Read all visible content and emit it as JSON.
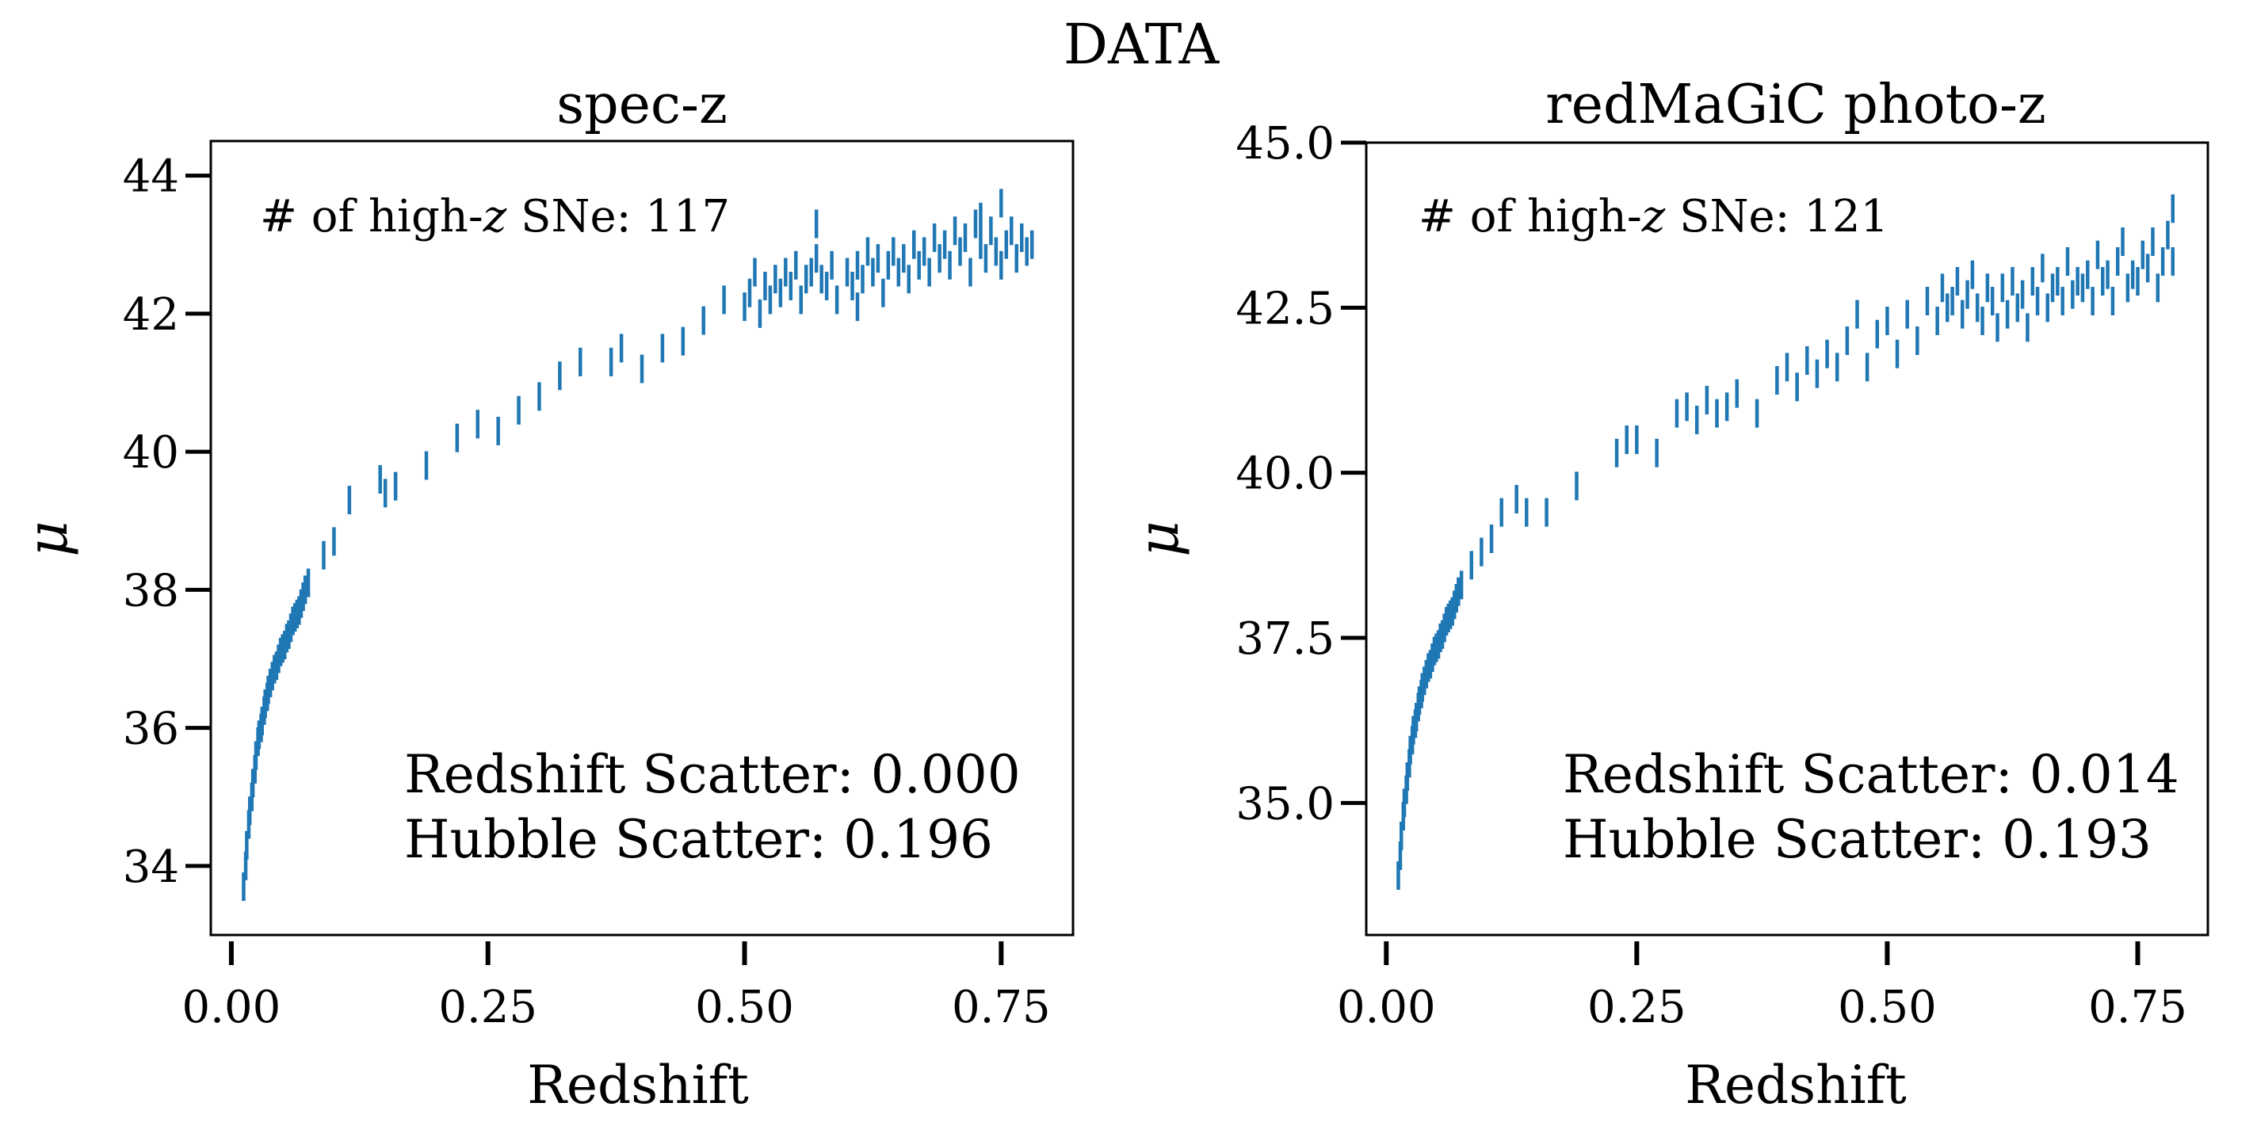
{
  "suptitle": "DATA",
  "chart_data": [
    {
      "type": "scatter",
      "title": "spec-z",
      "xlabel": "Redshift",
      "ylabel": "μ",
      "xlim": [
        -0.02,
        0.82
      ],
      "ylim": [
        33.0,
        44.5
      ],
      "xticks": [
        0.0,
        0.25,
        0.5,
        0.75
      ],
      "xtick_labels": [
        "0.00",
        "0.25",
        "0.50",
        "0.75"
      ],
      "yticks": [
        34,
        36,
        38,
        40,
        42,
        44
      ],
      "ytick_labels": [
        "34",
        "36",
        "38",
        "40",
        "42",
        "44"
      ],
      "count_prefix": "# of high-",
      "count_italic": "z",
      "count_suffix": " SNe: 117",
      "annot_line1": "Redshift Scatter: 0.000",
      "annot_line2": "Hubble Scatter: 0.196",
      "series": [
        {
          "color": "#1f77b4",
          "x": [
            0.012,
            0.014,
            0.015,
            0.017,
            0.018,
            0.02,
            0.021,
            0.023,
            0.024,
            0.026,
            0.027,
            0.029,
            0.03,
            0.032,
            0.033,
            0.035,
            0.036,
            0.038,
            0.04,
            0.042,
            0.044,
            0.046,
            0.048,
            0.05,
            0.052,
            0.054,
            0.056,
            0.058,
            0.06,
            0.062,
            0.064,
            0.066,
            0.068,
            0.07,
            0.072,
            0.075,
            0.09,
            0.1,
            0.115,
            0.145,
            0.15,
            0.16,
            0.19,
            0.22,
            0.24,
            0.26,
            0.28,
            0.3,
            0.32,
            0.34,
            0.37,
            0.38,
            0.4,
            0.42,
            0.44,
            0.46,
            0.48,
            0.5,
            0.505,
            0.51,
            0.515,
            0.52,
            0.525,
            0.53,
            0.535,
            0.54,
            0.545,
            0.55,
            0.555,
            0.56,
            0.565,
            0.57,
            0.575,
            0.58,
            0.585,
            0.59,
            0.6,
            0.605,
            0.61,
            0.615,
            0.62,
            0.625,
            0.63,
            0.635,
            0.64,
            0.645,
            0.65,
            0.655,
            0.66,
            0.665,
            0.67,
            0.675,
            0.68,
            0.685,
            0.69,
            0.695,
            0.7,
            0.705,
            0.71,
            0.715,
            0.72,
            0.725,
            0.73,
            0.735,
            0.74,
            0.745,
            0.75,
            0.755,
            0.76,
            0.765,
            0.77,
            0.775,
            0.78,
            0.57,
            0.61,
            0.73,
            0.75
          ],
          "y": [
            33.7,
            34.0,
            34.3,
            34.6,
            34.8,
            35.0,
            35.2,
            35.4,
            35.6,
            35.8,
            35.9,
            36.0,
            36.1,
            36.25,
            36.35,
            36.45,
            36.55,
            36.65,
            36.75,
            36.85,
            36.9,
            37.0,
            37.1,
            37.15,
            37.2,
            37.3,
            37.35,
            37.45,
            37.55,
            37.6,
            37.65,
            37.7,
            37.8,
            37.9,
            38.0,
            38.1,
            38.5,
            38.7,
            39.3,
            39.6,
            39.4,
            39.5,
            39.8,
            40.2,
            40.4,
            40.3,
            40.6,
            40.8,
            41.1,
            41.3,
            41.3,
            41.5,
            41.2,
            41.5,
            41.6,
            41.9,
            42.2,
            42.1,
            42.3,
            42.6,
            42.0,
            42.4,
            42.2,
            42.5,
            42.3,
            42.6,
            42.4,
            42.7,
            42.2,
            42.5,
            42.6,
            42.8,
            42.5,
            42.4,
            42.7,
            42.2,
            42.6,
            42.4,
            42.7,
            42.5,
            42.9,
            42.6,
            42.8,
            42.3,
            42.7,
            42.9,
            42.6,
            42.8,
            42.5,
            43.0,
            42.7,
            42.9,
            42.6,
            43.1,
            42.8,
            43.0,
            42.7,
            43.2,
            42.9,
            43.1,
            42.6,
            43.3,
            43.0,
            42.8,
            43.2,
            42.9,
            43.6,
            43.0,
            43.2,
            42.8,
            43.1,
            42.9,
            43.0,
            43.3,
            42.1,
            43.4,
            42.7
          ]
        }
      ]
    },
    {
      "type": "scatter",
      "title": "redMaGiC photo-z",
      "xlabel": "Redshift",
      "ylabel": "μ",
      "xlim": [
        -0.02,
        0.82
      ],
      "ylim": [
        33.0,
        45.0
      ],
      "xticks": [
        0.0,
        0.25,
        0.5,
        0.75
      ],
      "xtick_labels": [
        "0.00",
        "0.25",
        "0.50",
        "0.75"
      ],
      "yticks": [
        35.0,
        37.5,
        40.0,
        42.5,
        45.0
      ],
      "ytick_labels": [
        "35.0",
        "37.5",
        "40.0",
        "42.5",
        "45.0"
      ],
      "count_prefix": "# of high-",
      "count_italic": "z",
      "count_suffix": " SNe: 121",
      "annot_line1": "Redshift Scatter: 0.014",
      "annot_line2": "Hubble Scatter: 0.193",
      "series": [
        {
          "color": "#1f77b4",
          "x": [
            0.012,
            0.014,
            0.015,
            0.017,
            0.018,
            0.02,
            0.021,
            0.023,
            0.024,
            0.026,
            0.027,
            0.029,
            0.03,
            0.032,
            0.033,
            0.035,
            0.036,
            0.038,
            0.04,
            0.042,
            0.044,
            0.046,
            0.048,
            0.05,
            0.052,
            0.054,
            0.056,
            0.058,
            0.06,
            0.062,
            0.064,
            0.066,
            0.068,
            0.07,
            0.072,
            0.075,
            0.085,
            0.095,
            0.105,
            0.115,
            0.13,
            0.14,
            0.16,
            0.19,
            0.23,
            0.24,
            0.25,
            0.27,
            0.29,
            0.3,
            0.31,
            0.32,
            0.33,
            0.34,
            0.35,
            0.37,
            0.39,
            0.4,
            0.41,
            0.42,
            0.43,
            0.44,
            0.45,
            0.46,
            0.47,
            0.48,
            0.49,
            0.5,
            0.51,
            0.52,
            0.53,
            0.54,
            0.55,
            0.555,
            0.56,
            0.565,
            0.57,
            0.575,
            0.58,
            0.585,
            0.59,
            0.595,
            0.6,
            0.605,
            0.61,
            0.615,
            0.62,
            0.625,
            0.63,
            0.635,
            0.64,
            0.645,
            0.65,
            0.655,
            0.66,
            0.665,
            0.67,
            0.675,
            0.68,
            0.685,
            0.69,
            0.695,
            0.7,
            0.705,
            0.71,
            0.715,
            0.72,
            0.725,
            0.73,
            0.735,
            0.74,
            0.745,
            0.75,
            0.755,
            0.76,
            0.765,
            0.77,
            0.775,
            0.78,
            0.785,
            0.785
          ],
          "y": [
            33.9,
            34.2,
            34.5,
            34.8,
            35.0,
            35.2,
            35.4,
            35.6,
            35.8,
            35.95,
            36.1,
            36.2,
            36.3,
            36.45,
            36.55,
            36.65,
            36.75,
            36.85,
            36.95,
            37.05,
            37.1,
            37.2,
            37.3,
            37.35,
            37.4,
            37.5,
            37.55,
            37.65,
            37.75,
            37.8,
            37.85,
            37.9,
            38.0,
            38.1,
            38.2,
            38.3,
            38.6,
            38.8,
            39.0,
            39.4,
            39.6,
            39.4,
            39.4,
            39.8,
            40.3,
            40.5,
            40.5,
            40.3,
            40.9,
            41.0,
            40.8,
            41.1,
            40.9,
            41.0,
            41.2,
            40.9,
            41.4,
            41.6,
            41.3,
            41.7,
            41.5,
            41.8,
            41.6,
            42.0,
            42.4,
            41.6,
            42.1,
            42.3,
            41.8,
            42.4,
            42.0,
            42.6,
            42.3,
            42.8,
            42.5,
            42.6,
            42.9,
            42.4,
            42.7,
            43.0,
            42.5,
            42.3,
            42.8,
            42.6,
            42.2,
            42.8,
            42.4,
            42.9,
            42.5,
            42.7,
            42.2,
            42.9,
            42.6,
            43.1,
            42.5,
            42.8,
            42.9,
            42.6,
            43.2,
            42.7,
            42.9,
            42.8,
            43.0,
            42.6,
            43.3,
            42.9,
            43.0,
            42.6,
            43.2,
            43.5,
            42.8,
            43.0,
            42.9,
            43.3,
            43.1,
            43.5,
            42.8,
            43.2,
            43.6,
            44.0,
            43.2
          ]
        }
      ]
    }
  ]
}
